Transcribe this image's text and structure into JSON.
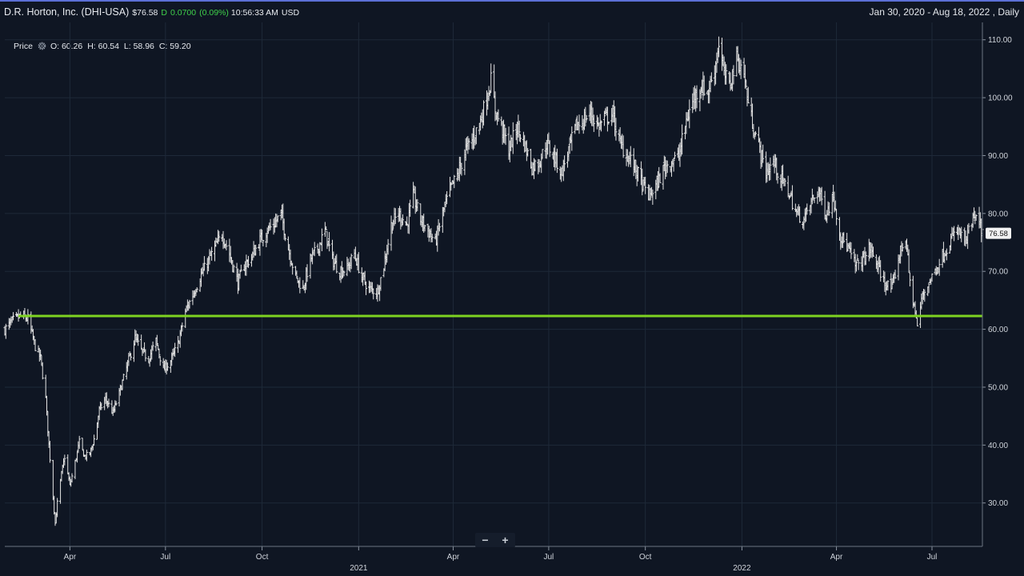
{
  "header": {
    "title": "D.R. Horton, Inc. (DHI-USA)",
    "price": "$76.58",
    "flag": "D",
    "change": "0.0700",
    "change_pct": "(0.09%)",
    "time": "10:56:33 AM",
    "currency": "USD",
    "range": "Jan 30, 2020 - Aug 18, 2022 , Daily"
  },
  "legend": {
    "label": "Price",
    "icon": "gear-icon",
    "open": "O: 60.26",
    "high": "H: 60.54",
    "low": "L: 58.96",
    "close": "C: 59.20"
  },
  "zoom": {
    "minus": "−",
    "plus": "+"
  },
  "colors": {
    "background": "#0f1623",
    "bars": "#e4e4e4",
    "support_line": "#7ed321",
    "grid": "#1e2938",
    "accent": "#5b6fd6"
  },
  "chart_data": {
    "type": "ohlc",
    "ylim": [
      22.5,
      113
    ],
    "y_ticks": [
      30,
      40,
      50,
      60,
      70,
      80,
      90,
      100,
      110
    ],
    "y_tick_labels": [
      "30.00",
      "40.00",
      "50.00",
      "60.00",
      "70.00",
      "80.00",
      "90.00",
      "100.00",
      "110.00"
    ],
    "last_price_label": "76.58",
    "last_price": 76.58,
    "support_level": 62.3,
    "x_range": [
      "2020-01-30",
      "2022-08-18"
    ],
    "x_ticks": [
      {
        "date": "2020-04-01",
        "label": "Apr"
      },
      {
        "date": "2020-07-01",
        "label": "Jul"
      },
      {
        "date": "2020-10-01",
        "label": "Oct"
      },
      {
        "date": "2021-01-01",
        "label": "",
        "year_label": "2021"
      },
      {
        "date": "2021-04-01",
        "label": "Apr"
      },
      {
        "date": "2021-07-01",
        "label": "Jul"
      },
      {
        "date": "2021-10-01",
        "label": "Oct"
      },
      {
        "date": "2022-01-01",
        "label": "",
        "year_label": "2022"
      },
      {
        "date": "2022-04-01",
        "label": "Apr"
      },
      {
        "date": "2022-07-01",
        "label": "Jul"
      }
    ],
    "close_path": [
      [
        "2020-01-30",
        60.0
      ],
      [
        "2020-02-07",
        61.5
      ],
      [
        "2020-02-14",
        62.3
      ],
      [
        "2020-02-21",
        61.8
      ],
      [
        "2020-02-28",
        57.0
      ],
      [
        "2020-03-04",
        55.0
      ],
      [
        "2020-03-09",
        48.0
      ],
      [
        "2020-03-12",
        40.0
      ],
      [
        "2020-03-16",
        31.0
      ],
      [
        "2020-03-18",
        26.5
      ],
      [
        "2020-03-20",
        30.0
      ],
      [
        "2020-03-24",
        35.0
      ],
      [
        "2020-03-27",
        38.0
      ],
      [
        "2020-04-01",
        33.0
      ],
      [
        "2020-04-06",
        37.0
      ],
      [
        "2020-04-10",
        40.5
      ],
      [
        "2020-04-15",
        38.0
      ],
      [
        "2020-04-20",
        38.5
      ],
      [
        "2020-04-24",
        41.0
      ],
      [
        "2020-04-29",
        46.0
      ],
      [
        "2020-05-05",
        48.0
      ],
      [
        "2020-05-12",
        45.5
      ],
      [
        "2020-05-18",
        49.0
      ],
      [
        "2020-05-26",
        54.0
      ],
      [
        "2020-06-02",
        58.5
      ],
      [
        "2020-06-09",
        56.0
      ],
      [
        "2020-06-15",
        55.0
      ],
      [
        "2020-06-22",
        58.0
      ],
      [
        "2020-06-29",
        53.0
      ],
      [
        "2020-07-06",
        54.5
      ],
      [
        "2020-07-13",
        57.5
      ],
      [
        "2020-07-20",
        63.0
      ],
      [
        "2020-07-27",
        66.0
      ],
      [
        "2020-08-03",
        69.0
      ],
      [
        "2020-08-10",
        71.5
      ],
      [
        "2020-08-17",
        74.0
      ],
      [
        "2020-08-24",
        76.5
      ],
      [
        "2020-08-31",
        73.0
      ],
      [
        "2020-09-08",
        68.0
      ],
      [
        "2020-09-14",
        71.0
      ],
      [
        "2020-09-21",
        72.5
      ],
      [
        "2020-09-28",
        75.0
      ],
      [
        "2020-10-05",
        77.0
      ],
      [
        "2020-10-12",
        78.0
      ],
      [
        "2020-10-19",
        80.0
      ],
      [
        "2020-10-26",
        74.0
      ],
      [
        "2020-11-02",
        69.0
      ],
      [
        "2020-11-09",
        67.0
      ],
      [
        "2020-11-16",
        72.0
      ],
      [
        "2020-11-23",
        74.0
      ],
      [
        "2020-11-30",
        77.0
      ],
      [
        "2020-12-07",
        72.0
      ],
      [
        "2020-12-14",
        70.0
      ],
      [
        "2020-12-21",
        70.5
      ],
      [
        "2020-12-28",
        73.0
      ],
      [
        "2021-01-04",
        69.0
      ],
      [
        "2021-01-11",
        67.0
      ],
      [
        "2021-01-19",
        66.5
      ],
      [
        "2021-01-25",
        71.0
      ],
      [
        "2021-02-01",
        78.0
      ],
      [
        "2021-02-08",
        80.0
      ],
      [
        "2021-02-16",
        78.0
      ],
      [
        "2021-02-22",
        83.0
      ],
      [
        "2021-03-01",
        79.0
      ],
      [
        "2021-03-08",
        77.0
      ],
      [
        "2021-03-15",
        75.0
      ],
      [
        "2021-03-22",
        80.0
      ],
      [
        "2021-03-29",
        84.0
      ],
      [
        "2021-04-06",
        87.0
      ],
      [
        "2021-04-13",
        91.0
      ],
      [
        "2021-04-20",
        93.0
      ],
      [
        "2021-04-27",
        96.0
      ],
      [
        "2021-05-03",
        100.0
      ],
      [
        "2021-05-07",
        103.0
      ],
      [
        "2021-05-11",
        98.0
      ],
      [
        "2021-05-17",
        95.0
      ],
      [
        "2021-05-24",
        91.0
      ],
      [
        "2021-06-01",
        95.0
      ],
      [
        "2021-06-08",
        92.0
      ],
      [
        "2021-06-15",
        88.0
      ],
      [
        "2021-06-22",
        89.0
      ],
      [
        "2021-06-29",
        92.0
      ],
      [
        "2021-07-06",
        90.0
      ],
      [
        "2021-07-13",
        87.0
      ],
      [
        "2021-07-20",
        91.0
      ],
      [
        "2021-07-27",
        95.0
      ],
      [
        "2021-08-03",
        96.0
      ],
      [
        "2021-08-10",
        97.5
      ],
      [
        "2021-08-17",
        95.0
      ],
      [
        "2021-08-24",
        96.5
      ],
      [
        "2021-08-31",
        97.0
      ],
      [
        "2021-09-07",
        92.0
      ],
      [
        "2021-09-14",
        90.0
      ],
      [
        "2021-09-21",
        88.0
      ],
      [
        "2021-09-28",
        85.0
      ],
      [
        "2021-10-05",
        83.0
      ],
      [
        "2021-10-12",
        85.0
      ],
      [
        "2021-10-19",
        88.0
      ],
      [
        "2021-10-26",
        89.0
      ],
      [
        "2021-11-02",
        90.0
      ],
      [
        "2021-11-09",
        96.0
      ],
      [
        "2021-11-16",
        100.0
      ],
      [
        "2021-11-23",
        102.0
      ],
      [
        "2021-11-30",
        101.0
      ],
      [
        "2021-12-07",
        106.0
      ],
      [
        "2021-12-10",
        109.5
      ],
      [
        "2021-12-15",
        104.0
      ],
      [
        "2021-12-20",
        102.0
      ],
      [
        "2021-12-27",
        107.0
      ],
      [
        "2022-01-03",
        104.0
      ],
      [
        "2022-01-07",
        99.0
      ],
      [
        "2022-01-12",
        95.0
      ],
      [
        "2022-01-18",
        91.0
      ],
      [
        "2022-01-24",
        87.0
      ],
      [
        "2022-01-31",
        89.0
      ],
      [
        "2022-02-07",
        86.0
      ],
      [
        "2022-02-14",
        84.0
      ],
      [
        "2022-02-22",
        80.0
      ],
      [
        "2022-03-01",
        79.0
      ],
      [
        "2022-03-08",
        82.0
      ],
      [
        "2022-03-15",
        84.0
      ],
      [
        "2022-03-22",
        80.0
      ],
      [
        "2022-03-29",
        83.0
      ],
      [
        "2022-04-05",
        76.0
      ],
      [
        "2022-04-12",
        74.0
      ],
      [
        "2022-04-19",
        71.0
      ],
      [
        "2022-04-26",
        72.0
      ],
      [
        "2022-05-03",
        74.0
      ],
      [
        "2022-05-10",
        71.0
      ],
      [
        "2022-05-17",
        68.0
      ],
      [
        "2022-05-24",
        67.0
      ],
      [
        "2022-05-31",
        73.0
      ],
      [
        "2022-06-06",
        76.0
      ],
      [
        "2022-06-10",
        68.0
      ],
      [
        "2022-06-14",
        64.0
      ],
      [
        "2022-06-17",
        60.5
      ],
      [
        "2022-06-22",
        66.0
      ],
      [
        "2022-06-28",
        68.0
      ],
      [
        "2022-07-05",
        70.5
      ],
      [
        "2022-07-12",
        73.0
      ],
      [
        "2022-07-19",
        75.5
      ],
      [
        "2022-07-26",
        77.0
      ],
      [
        "2022-08-02",
        75.0
      ],
      [
        "2022-08-09",
        79.0
      ],
      [
        "2022-08-15",
        78.5
      ],
      [
        "2022-08-18",
        76.58
      ]
    ]
  }
}
